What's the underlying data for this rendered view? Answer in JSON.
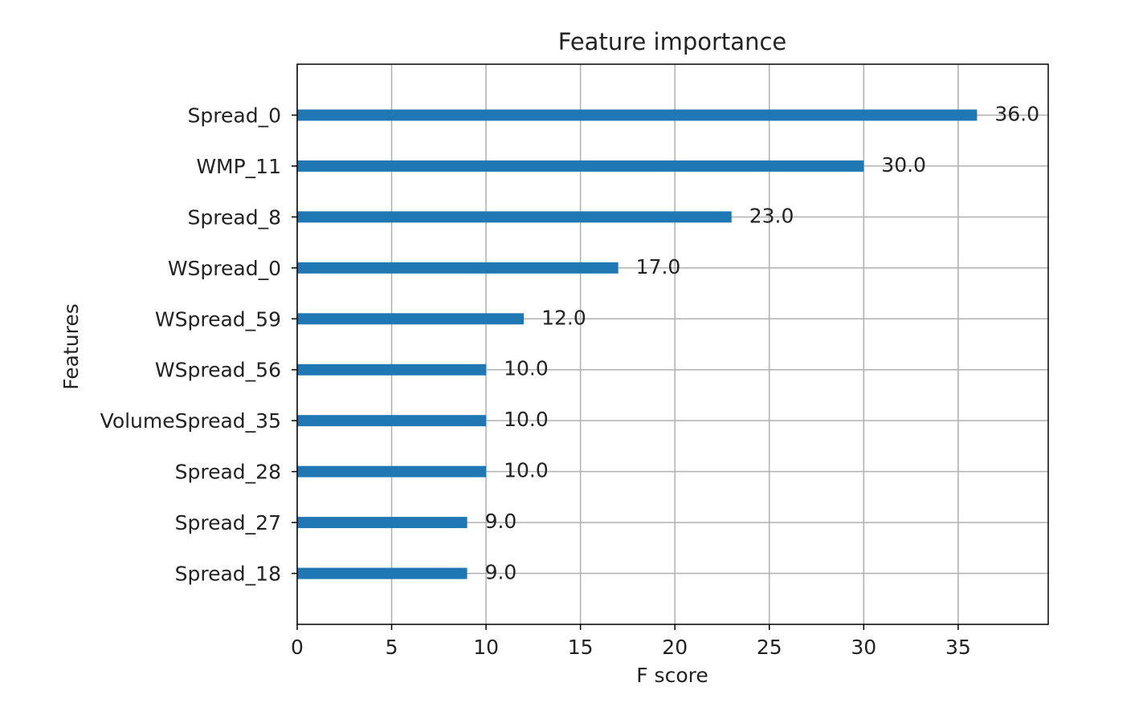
{
  "chart_data": {
    "type": "barh",
    "title": "Feature importance",
    "x_label": "F score",
    "y_label": "Features",
    "categories": [
      "Spread_0",
      "WMP_11",
      "Spread_8",
      "WSpread_0",
      "WSpread_59",
      "WSpread_56",
      "VolumeSpread_35",
      "Spread_28",
      "Spread_27",
      "Spread_18"
    ],
    "values": [
      36,
      30,
      23,
      17,
      12,
      10,
      10,
      10,
      9,
      9
    ],
    "value_labels": [
      "36.0",
      "30.0",
      "23.0",
      "17.0",
      "12.0",
      "10.0",
      "10.0",
      "10.0",
      "9.0",
      "9.0"
    ],
    "color": "#1f77b4",
    "xlim": [
      0,
      39.77
    ],
    "xticks": [
      0,
      5,
      10,
      15,
      20,
      25,
      30,
      35
    ],
    "grid": true
  }
}
